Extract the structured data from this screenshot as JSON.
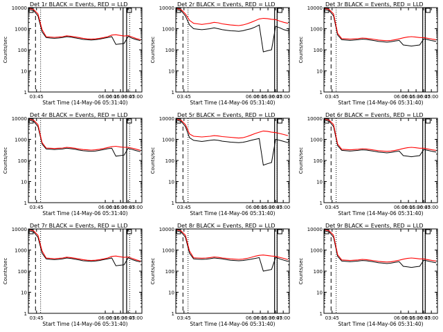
{
  "chart_data": [
    {
      "type": "line",
      "title": "Det 1r BLACK = Events, RED = LLD",
      "xlabel": "Start Time (14-May-06 05:31:40)",
      "ylabel": "Counts/sec",
      "yscale": "log",
      "ylim": [
        1,
        10000
      ],
      "xlim": [
        "03:29",
        "07:12"
      ],
      "xticks": [
        "03:45",
        "06:00",
        "06:15",
        "06:30",
        "06:45",
        "07:00"
      ],
      "yticks": [
        "1",
        "10",
        "100",
        "1000",
        "10000"
      ],
      "markers": {
        "dashed": "03:43",
        "dotted": [
          "03:53",
          "06:48"
        ],
        "solid": [
          "06:35",
          "06:42"
        ]
      },
      "series": [
        {
          "color": "#000000",
          "values": [
            8000,
            7000,
            4000,
            700,
            380,
            360,
            350,
            360,
            380,
            420,
            400,
            370,
            340,
            310,
            300,
            290,
            300,
            320,
            350,
            380,
            420,
            180,
            190,
            200,
            430,
            350,
            300,
            270
          ]
        },
        {
          "color": "#ff0000",
          "values": [
            9000,
            8000,
            5000,
            900,
            420,
            400,
            390,
            400,
            420,
            460,
            440,
            410,
            380,
            350,
            330,
            320,
            330,
            350,
            380,
            420,
            500,
            520,
            480,
            450,
            470,
            400,
            340,
            300
          ]
        }
      ]
    },
    {
      "type": "line",
      "title": "Det 2r BLACK = Events, RED = LLD",
      "xlabel": "Start Time (14-May-06 05:31:40)",
      "ylabel": "Counts/sec",
      "yscale": "log",
      "ylim": [
        1,
        10000
      ],
      "xlim": [
        "03:29",
        "07:12"
      ],
      "xticks": [
        "03:45",
        "06:00",
        "06:15",
        "06:30",
        "06:45",
        "07:00"
      ],
      "yticks": [
        "1",
        "10",
        "100",
        "1000",
        "10000"
      ],
      "markers": {
        "dashed": "03:43",
        "dotted": [
          "03:53",
          "06:48"
        ],
        "solid": [
          "06:43",
          "06:48"
        ]
      },
      "series": [
        {
          "color": "#000000",
          "values": [
            8000,
            7000,
            4000,
            1500,
            1000,
            950,
            900,
            950,
            1000,
            1100,
            1000,
            900,
            850,
            800,
            780,
            750,
            800,
            900,
            1000,
            1200,
            1500,
            80,
            90,
            100,
            1300,
            1100,
            900,
            800
          ]
        },
        {
          "color": "#ff0000",
          "values": [
            9000,
            8000,
            5000,
            2500,
            1800,
            1700,
            1600,
            1700,
            1800,
            2000,
            1900,
            1700,
            1600,
            1500,
            1450,
            1400,
            1500,
            1700,
            2000,
            2400,
            2900,
            3100,
            3000,
            2800,
            2700,
            2300,
            2000,
            1800
          ]
        }
      ]
    },
    {
      "type": "line",
      "title": "Det 3r BLACK = Events, RED = LLD",
      "xlabel": "Start Time (14-May-06 05:31:40)",
      "ylabel": "Counts/sec",
      "yscale": "log",
      "ylim": [
        1,
        10000
      ],
      "xlim": [
        "03:29",
        "07:12"
      ],
      "xticks": [
        "03:45",
        "06:00",
        "06:15",
        "06:30",
        "06:45",
        "07:00"
      ],
      "yticks": [
        "1",
        "10",
        "100",
        "1000",
        "10000"
      ],
      "markers": {
        "dashed": "03:43",
        "dotted": [
          "03:53",
          "06:48"
        ],
        "solid": [
          "06:43",
          "06:48"
        ]
      },
      "series": [
        {
          "color": "#000000",
          "values": [
            8000,
            7000,
            4000,
            500,
            300,
            290,
            280,
            290,
            300,
            320,
            310,
            290,
            270,
            250,
            240,
            230,
            240,
            260,
            280,
            170,
            160,
            150,
            160,
            170,
            330,
            300,
            270,
            250
          ]
        },
        {
          "color": "#ff0000",
          "values": [
            9000,
            8000,
            5000,
            600,
            340,
            330,
            320,
            330,
            340,
            360,
            350,
            330,
            310,
            290,
            280,
            270,
            280,
            300,
            330,
            370,
            400,
            420,
            400,
            380,
            380,
            350,
            320,
            300
          ]
        }
      ]
    },
    {
      "type": "line",
      "title": "Det 4r BLACK = Events, RED = LLD",
      "xlabel": "Start Time (14-May-06 05:31:40)",
      "ylabel": "Counts/sec",
      "yscale": "log",
      "ylim": [
        1,
        10000
      ],
      "xlim": [
        "03:29",
        "07:12"
      ],
      "xticks": [
        "03:45",
        "06:00",
        "06:15",
        "06:30",
        "06:45",
        "07:00"
      ],
      "yticks": [
        "1",
        "10",
        "100",
        "1000",
        "10000"
      ],
      "markers": {
        "dashed": "03:43",
        "dotted": [
          "03:53",
          "06:48"
        ],
        "solid": [
          "06:35",
          "06:42"
        ]
      },
      "series": [
        {
          "color": "#000000",
          "values": [
            8000,
            7000,
            4000,
            600,
            350,
            340,
            330,
            340,
            350,
            380,
            360,
            340,
            310,
            290,
            280,
            270,
            280,
            300,
            330,
            360,
            380,
            160,
            170,
            180,
            380,
            330,
            290,
            260
          ]
        },
        {
          "color": "#ff0000",
          "values": [
            9000,
            8000,
            5000,
            700,
            390,
            380,
            370,
            380,
            390,
            420,
            400,
            380,
            350,
            330,
            320,
            310,
            320,
            340,
            370,
            410,
            450,
            470,
            440,
            420,
            420,
            380,
            340,
            300
          ]
        }
      ]
    },
    {
      "type": "line",
      "title": "Det 5r BLACK = Events, RED = LLD",
      "xlabel": "Start Time (14-May-06 05:31:40)",
      "ylabel": "Counts/sec",
      "yscale": "log",
      "ylim": [
        1,
        10000
      ],
      "xlim": [
        "03:29",
        "07:12"
      ],
      "xticks": [
        "03:45",
        "06:00",
        "06:15",
        "06:30",
        "06:45",
        "07:00"
      ],
      "yticks": [
        "1",
        "10",
        "100",
        "1000",
        "10000"
      ],
      "markers": {
        "dashed": "03:43",
        "dotted": [
          "03:53",
          "06:48"
        ],
        "solid": [
          "06:43",
          "06:48"
        ]
      },
      "series": [
        {
          "color": "#000000",
          "values": [
            8000,
            7000,
            4000,
            1200,
            900,
            850,
            800,
            850,
            900,
            950,
            900,
            820,
            780,
            740,
            720,
            700,
            730,
            800,
            900,
            1000,
            1100,
            60,
            70,
            80,
            1000,
            900,
            800,
            700
          ]
        },
        {
          "color": "#ff0000",
          "values": [
            9000,
            8000,
            5000,
            1800,
            1400,
            1350,
            1300,
            1350,
            1400,
            1500,
            1450,
            1350,
            1300,
            1250,
            1200,
            1150,
            1200,
            1350,
            1600,
            1900,
            2200,
            2500,
            2400,
            2200,
            2100,
            1900,
            1700,
            1500
          ]
        }
      ]
    },
    {
      "type": "line",
      "title": "Det 6r BLACK = Events, RED = LLD",
      "xlabel": "Start Time (14-May-06 05:31:40)",
      "ylabel": "Counts/sec",
      "yscale": "log",
      "ylim": [
        1,
        10000
      ],
      "xlim": [
        "03:29",
        "07:12"
      ],
      "xticks": [
        "03:45",
        "06:00",
        "06:15",
        "06:30",
        "06:45",
        "07:00"
      ],
      "yticks": [
        "1",
        "10",
        "100",
        "1000",
        "10000"
      ],
      "markers": {
        "dashed": "03:43",
        "dotted": [
          "03:53",
          "06:48"
        ],
        "solid": [
          "06:43",
          "06:48"
        ]
      },
      "series": [
        {
          "color": "#000000",
          "values": [
            8000,
            7000,
            4000,
            500,
            300,
            290,
            280,
            290,
            300,
            320,
            310,
            290,
            270,
            250,
            240,
            230,
            240,
            260,
            280,
            170,
            160,
            150,
            160,
            170,
            330,
            300,
            270,
            250
          ]
        },
        {
          "color": "#ff0000",
          "values": [
            9000,
            8000,
            5000,
            600,
            340,
            330,
            320,
            330,
            340,
            360,
            350,
            330,
            310,
            290,
            280,
            270,
            280,
            300,
            330,
            370,
            400,
            420,
            400,
            380,
            380,
            350,
            320,
            300
          ]
        }
      ]
    },
    {
      "type": "line",
      "title": "Det 7r BLACK = Events, RED = LLD",
      "xlabel": "Start Time (14-May-06 05:31:40)",
      "ylabel": "Counts/sec",
      "yscale": "log",
      "ylim": [
        1,
        10000
      ],
      "xlim": [
        "03:29",
        "07:12"
      ],
      "xticks": [
        "03:45",
        "06:00",
        "06:15",
        "06:30",
        "06:45",
        "07:00"
      ],
      "yticks": [
        "1",
        "10",
        "100",
        "1000",
        "10000"
      ],
      "markers": {
        "dashed": "03:43",
        "dotted": [
          "03:53",
          "06:48"
        ],
        "solid": [
          "06:35",
          "06:42"
        ]
      },
      "series": [
        {
          "color": "#000000",
          "values": [
            8000,
            7000,
            4000,
            700,
            380,
            360,
            350,
            360,
            380,
            420,
            400,
            370,
            340,
            310,
            300,
            290,
            300,
            320,
            350,
            380,
            420,
            180,
            190,
            200,
            430,
            350,
            300,
            270
          ]
        },
        {
          "color": "#ff0000",
          "values": [
            9000,
            8000,
            5000,
            900,
            420,
            400,
            390,
            400,
            420,
            460,
            440,
            410,
            380,
            350,
            330,
            320,
            330,
            350,
            380,
            420,
            500,
            520,
            480,
            450,
            470,
            400,
            340,
            300
          ]
        }
      ]
    },
    {
      "type": "line",
      "title": "Det 8r BLACK = Events, RED = LLD",
      "xlabel": "Start Time (14-May-06 05:31:40)",
      "ylabel": "Counts/sec",
      "yscale": "log",
      "ylim": [
        1,
        10000
      ],
      "xlim": [
        "03:29",
        "07:12"
      ],
      "xticks": [
        "03:45",
        "06:00",
        "06:15",
        "06:30",
        "06:45",
        "07:00"
      ],
      "yticks": [
        "1",
        "10",
        "100",
        "1000",
        "10000"
      ],
      "markers": {
        "dashed": "03:43",
        "dotted": [
          "03:53",
          "06:48"
        ],
        "solid": [
          "06:43",
          "06:48"
        ]
      },
      "series": [
        {
          "color": "#000000",
          "values": [
            8000,
            7000,
            4000,
            700,
            380,
            370,
            360,
            370,
            390,
            420,
            400,
            380,
            350,
            330,
            320,
            310,
            320,
            340,
            370,
            400,
            440,
            100,
            110,
            120,
            450,
            380,
            330,
            290
          ]
        },
        {
          "color": "#ff0000",
          "values": [
            9000,
            8000,
            5000,
            900,
            430,
            420,
            410,
            420,
            440,
            470,
            450,
            420,
            400,
            380,
            370,
            360,
            370,
            400,
            450,
            510,
            560,
            580,
            550,
            520,
            500,
            450,
            400,
            350
          ]
        }
      ]
    },
    {
      "type": "line",
      "title": "Det 9r BLACK = Events, RED = LLD",
      "xlabel": "Start Time (14-May-06 05:31:40)",
      "ylabel": "Counts/sec",
      "yscale": "log",
      "ylim": [
        1,
        10000
      ],
      "xlim": [
        "03:29",
        "07:12"
      ],
      "xticks": [
        "03:45",
        "06:00",
        "06:15",
        "06:30",
        "06:45",
        "07:00"
      ],
      "yticks": [
        "1",
        "10",
        "100",
        "1000",
        "10000"
      ],
      "markers": {
        "dashed": "03:43",
        "dotted": [
          "03:53",
          "06:48"
        ],
        "solid": [
          "06:43",
          "06:48"
        ]
      },
      "series": [
        {
          "color": "#000000",
          "values": [
            8000,
            7000,
            4000,
            500,
            300,
            290,
            280,
            290,
            300,
            320,
            310,
            290,
            270,
            250,
            240,
            230,
            240,
            260,
            280,
            170,
            160,
            150,
            160,
            170,
            330,
            300,
            270,
            250
          ]
        },
        {
          "color": "#ff0000",
          "values": [
            9000,
            8000,
            5000,
            600,
            340,
            330,
            320,
            330,
            340,
            360,
            350,
            330,
            310,
            290,
            280,
            270,
            280,
            300,
            330,
            370,
            400,
            420,
            400,
            380,
            380,
            350,
            320,
            300
          ]
        }
      ]
    }
  ]
}
